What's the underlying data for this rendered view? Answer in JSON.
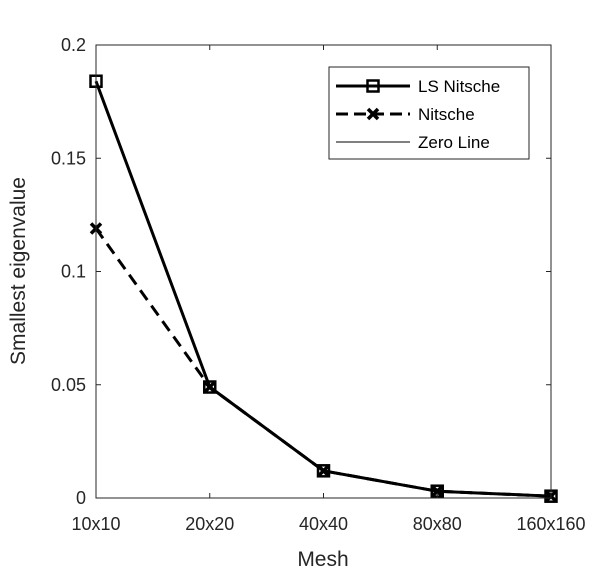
{
  "chart_data": {
    "type": "line",
    "categories": [
      "10x10",
      "20x20",
      "40x40",
      "80x80",
      "160x160"
    ],
    "xlabel": "Mesh",
    "ylabel": "Smallest eigenvalue",
    "ylim": [
      0,
      0.2
    ],
    "yticks": [
      "0",
      "0.05",
      "0.1",
      "0.15",
      "0.2"
    ],
    "grid": false,
    "legend_position": "top-right",
    "series": [
      {
        "name": "LS Nitsche",
        "values": [
          0.184,
          0.049,
          0.012,
          0.003,
          0.0008
        ],
        "style": "solid",
        "marker": "square",
        "color": "#000000"
      },
      {
        "name": "Nitsche",
        "values": [
          0.119,
          0.049,
          0.012,
          0.003,
          0.0008
        ],
        "style": "dashed",
        "marker": "x",
        "color": "#000000"
      },
      {
        "name": "Zero Line",
        "values": [
          0,
          0,
          0,
          0,
          0
        ],
        "style": "solid-thin",
        "marker": "none",
        "color": "#000000"
      }
    ]
  }
}
